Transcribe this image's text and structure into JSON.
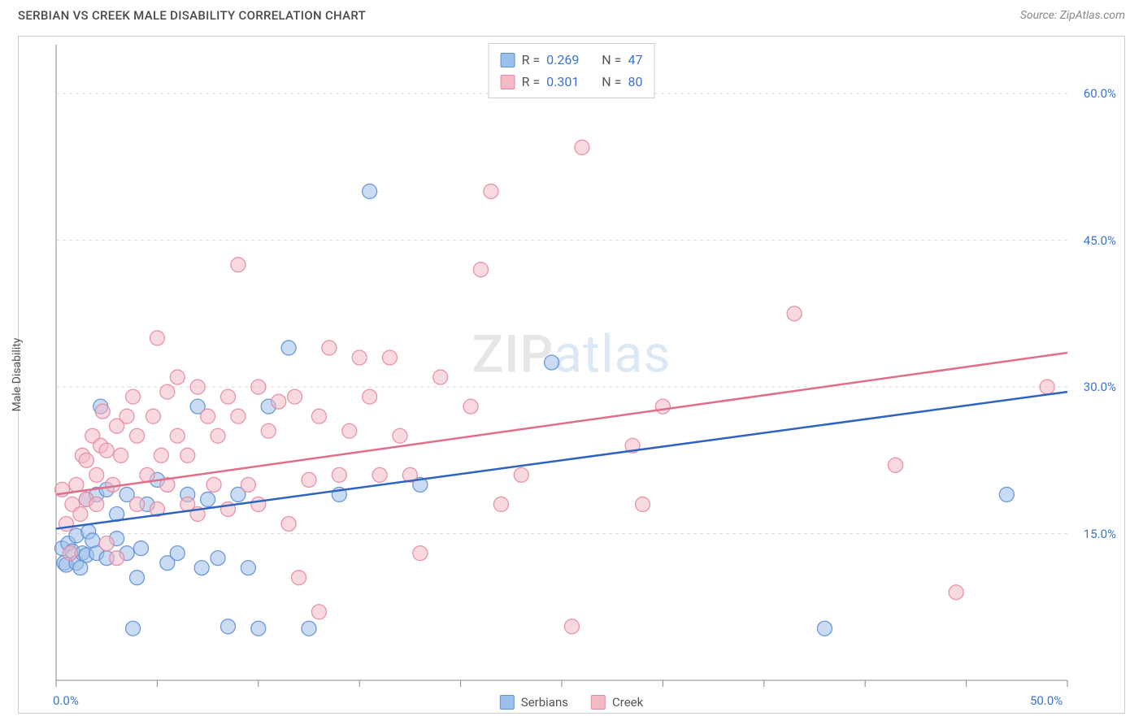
{
  "header": {
    "title": "SERBIAN VS CREEK MALE DISABILITY CORRELATION CHART",
    "source": "Source: ZipAtlas.com"
  },
  "ylabel": "Male Disability",
  "watermark": {
    "part1": "ZIP",
    "part2": "atlas"
  },
  "chart": {
    "type": "scatter",
    "background_color": "#ffffff",
    "grid_color": "#d9d9d9",
    "axis_color": "#888888",
    "xlim": [
      0,
      50
    ],
    "ylim": [
      0,
      65
    ],
    "xtick_step": 5,
    "x_labels": [
      {
        "value": 0,
        "text": "0.0%"
      },
      {
        "value": 50,
        "text": "50.0%"
      }
    ],
    "y_gridlines": [
      {
        "value": 15,
        "text": "15.0%"
      },
      {
        "value": 30,
        "text": "30.0%"
      },
      {
        "value": 45,
        "text": "45.0%"
      },
      {
        "value": 60,
        "text": "60.0%"
      }
    ],
    "marker_radius": 9,
    "marker_opacity": 0.55,
    "line_width": 2.5,
    "series": [
      {
        "name": "Serbians",
        "fill_color": "#9cc0ea",
        "stroke_color": "#5f8fd4",
        "line_color": "#2f63c2",
        "R": "0.269",
        "N": "47",
        "trend": {
          "x1": 0,
          "y1": 15.5,
          "x2": 50,
          "y2": 29.5
        },
        "points": [
          [
            0.3,
            13.5
          ],
          [
            0.4,
            12.0
          ],
          [
            0.5,
            11.8
          ],
          [
            0.6,
            14.0
          ],
          [
            0.8,
            13.2
          ],
          [
            1.0,
            12.0
          ],
          [
            1.0,
            14.8
          ],
          [
            1.2,
            11.5
          ],
          [
            1.3,
            13.0
          ],
          [
            1.5,
            12.8
          ],
          [
            1.5,
            18.5
          ],
          [
            1.6,
            15.2
          ],
          [
            1.8,
            14.3
          ],
          [
            2.0,
            13.0
          ],
          [
            2.0,
            19.0
          ],
          [
            2.2,
            28.0
          ],
          [
            2.5,
            12.5
          ],
          [
            2.5,
            19.5
          ],
          [
            3.0,
            14.5
          ],
          [
            3.0,
            17.0
          ],
          [
            3.5,
            13.0
          ],
          [
            3.5,
            19.0
          ],
          [
            3.8,
            5.3
          ],
          [
            4.0,
            10.5
          ],
          [
            4.2,
            13.5
          ],
          [
            4.5,
            18.0
          ],
          [
            5.0,
            20.5
          ],
          [
            5.5,
            12.0
          ],
          [
            6.0,
            13.0
          ],
          [
            6.5,
            19.0
          ],
          [
            7.0,
            28.0
          ],
          [
            7.2,
            11.5
          ],
          [
            7.5,
            18.5
          ],
          [
            8.0,
            12.5
          ],
          [
            8.5,
            5.5
          ],
          [
            9.0,
            19.0
          ],
          [
            9.5,
            11.5
          ],
          [
            10.0,
            5.3
          ],
          [
            10.5,
            28.0
          ],
          [
            11.5,
            34.0
          ],
          [
            12.5,
            5.3
          ],
          [
            14.0,
            19.0
          ],
          [
            15.5,
            50.0
          ],
          [
            18.0,
            20.0
          ],
          [
            24.5,
            32.5
          ],
          [
            38.0,
            5.3
          ],
          [
            47.0,
            19.0
          ]
        ]
      },
      {
        "name": "Creek",
        "fill_color": "#f3b9c6",
        "stroke_color": "#e48aa0",
        "line_color": "#e06e8a",
        "R": "0.301",
        "N": "80",
        "trend": {
          "x1": 0,
          "y1": 19.0,
          "x2": 50,
          "y2": 33.5
        },
        "points": [
          [
            0.3,
            19.5
          ],
          [
            0.5,
            16.0
          ],
          [
            0.7,
            13.0
          ],
          [
            0.8,
            18.0
          ],
          [
            1.0,
            20.0
          ],
          [
            1.2,
            17.0
          ],
          [
            1.3,
            23.0
          ],
          [
            1.5,
            18.5
          ],
          [
            1.5,
            22.5
          ],
          [
            1.8,
            25.0
          ],
          [
            2.0,
            18.0
          ],
          [
            2.0,
            21.0
          ],
          [
            2.2,
            24.0
          ],
          [
            2.3,
            27.5
          ],
          [
            2.5,
            14.0
          ],
          [
            2.5,
            23.5
          ],
          [
            2.8,
            20.0
          ],
          [
            3.0,
            12.5
          ],
          [
            3.0,
            26.0
          ],
          [
            3.2,
            23.0
          ],
          [
            3.5,
            27.0
          ],
          [
            3.8,
            29.0
          ],
          [
            4.0,
            18.0
          ],
          [
            4.0,
            25.0
          ],
          [
            4.5,
            21.0
          ],
          [
            4.8,
            27.0
          ],
          [
            5.0,
            17.5
          ],
          [
            5.0,
            35.0
          ],
          [
            5.2,
            23.0
          ],
          [
            5.5,
            20.0
          ],
          [
            5.5,
            29.5
          ],
          [
            6.0,
            25.0
          ],
          [
            6.0,
            31.0
          ],
          [
            6.5,
            18.0
          ],
          [
            6.5,
            23.0
          ],
          [
            7.0,
            17.0
          ],
          [
            7.0,
            30.0
          ],
          [
            7.5,
            27.0
          ],
          [
            7.8,
            20.0
          ],
          [
            8.0,
            25.0
          ],
          [
            8.5,
            17.5
          ],
          [
            8.5,
            29.0
          ],
          [
            9.0,
            27.0
          ],
          [
            9.0,
            42.5
          ],
          [
            9.5,
            20.0
          ],
          [
            10.0,
            18.0
          ],
          [
            10.0,
            30.0
          ],
          [
            10.5,
            25.5
          ],
          [
            11.0,
            28.5
          ],
          [
            11.5,
            16.0
          ],
          [
            11.8,
            29.0
          ],
          [
            12.0,
            10.5
          ],
          [
            12.5,
            20.5
          ],
          [
            13.0,
            27.0
          ],
          [
            13.0,
            7.0
          ],
          [
            13.5,
            34.0
          ],
          [
            14.0,
            21.0
          ],
          [
            14.5,
            25.5
          ],
          [
            15.0,
            33.0
          ],
          [
            15.5,
            29.0
          ],
          [
            16.0,
            21.0
          ],
          [
            16.5,
            33.0
          ],
          [
            17.0,
            25.0
          ],
          [
            17.5,
            21.0
          ],
          [
            18.0,
            13.0
          ],
          [
            19.0,
            31.0
          ],
          [
            20.5,
            28.0
          ],
          [
            21.0,
            42.0
          ],
          [
            21.5,
            50.0
          ],
          [
            22.0,
            18.0
          ],
          [
            23.0,
            21.0
          ],
          [
            25.5,
            5.5
          ],
          [
            26.0,
            54.5
          ],
          [
            28.5,
            24.0
          ],
          [
            29.0,
            18.0
          ],
          [
            30.0,
            28.0
          ],
          [
            36.5,
            37.5
          ],
          [
            41.5,
            22.0
          ],
          [
            44.5,
            9.0
          ],
          [
            49.0,
            30.0
          ]
        ]
      }
    ]
  },
  "legend_labels": {
    "serbians": "Serbians",
    "creek": "Creek"
  },
  "text": {
    "R": "R =",
    "N": "N ="
  }
}
